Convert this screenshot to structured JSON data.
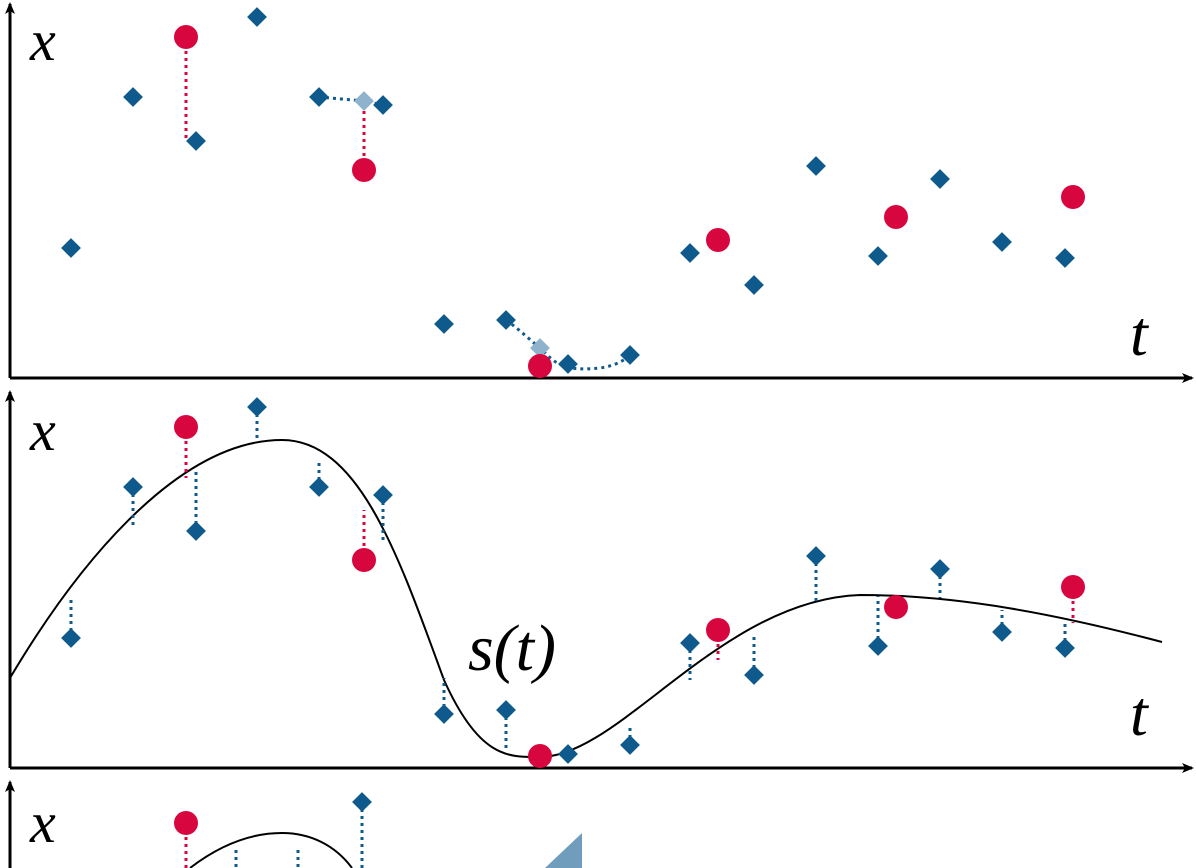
{
  "panels": [
    {
      "y_label": "x",
      "x_label": "t"
    },
    {
      "y_label": "x",
      "x_label": "t",
      "curve_label": "s(t)"
    },
    {
      "y_label": "x"
    }
  ]
}
